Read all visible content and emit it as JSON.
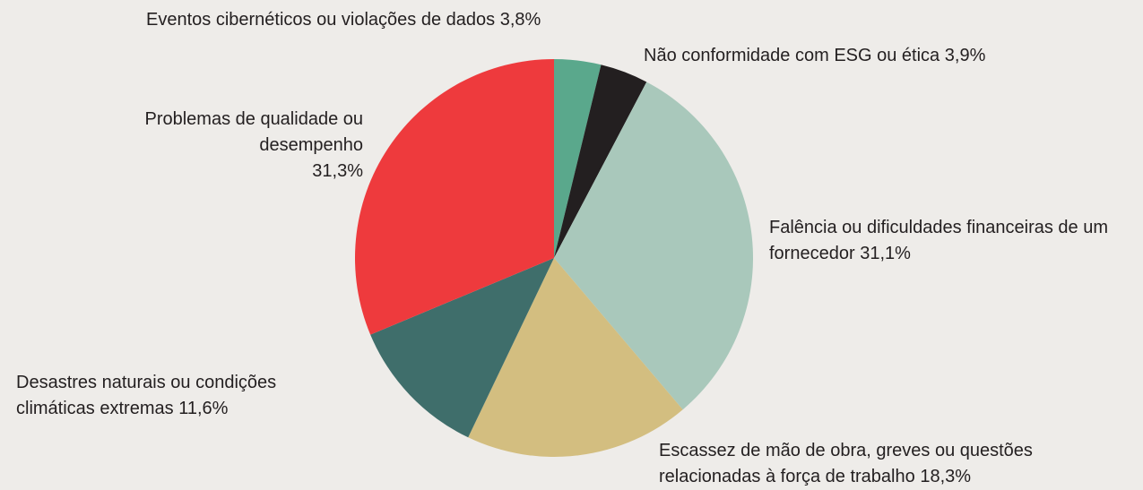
{
  "chart_data": {
    "type": "pie",
    "categories": [
      "Eventos cibernéticos ou violações de dados",
      "Não conformidade com ESG ou ética",
      "Falência ou dificuldades financeiras de um fornecedor",
      "Escassez de mão de obra, greves ou questões relacionadas à força de trabalho",
      "Desastres naturais ou condições climáticas extremas",
      "Problemas de qualidade ou desempenho"
    ],
    "values": [
      3.8,
      3.9,
      31.1,
      18.3,
      11.6,
      31.3
    ],
    "value_labels": [
      "3,8%",
      "3,9%",
      "31,1%",
      "18,3%",
      "11,6%",
      "31,3%"
    ],
    "colors": [
      "#5aa88c",
      "#231f20",
      "#a9c8bb",
      "#d3be80",
      "#3f6e6b",
      "#ee3a3d"
    ]
  }
}
